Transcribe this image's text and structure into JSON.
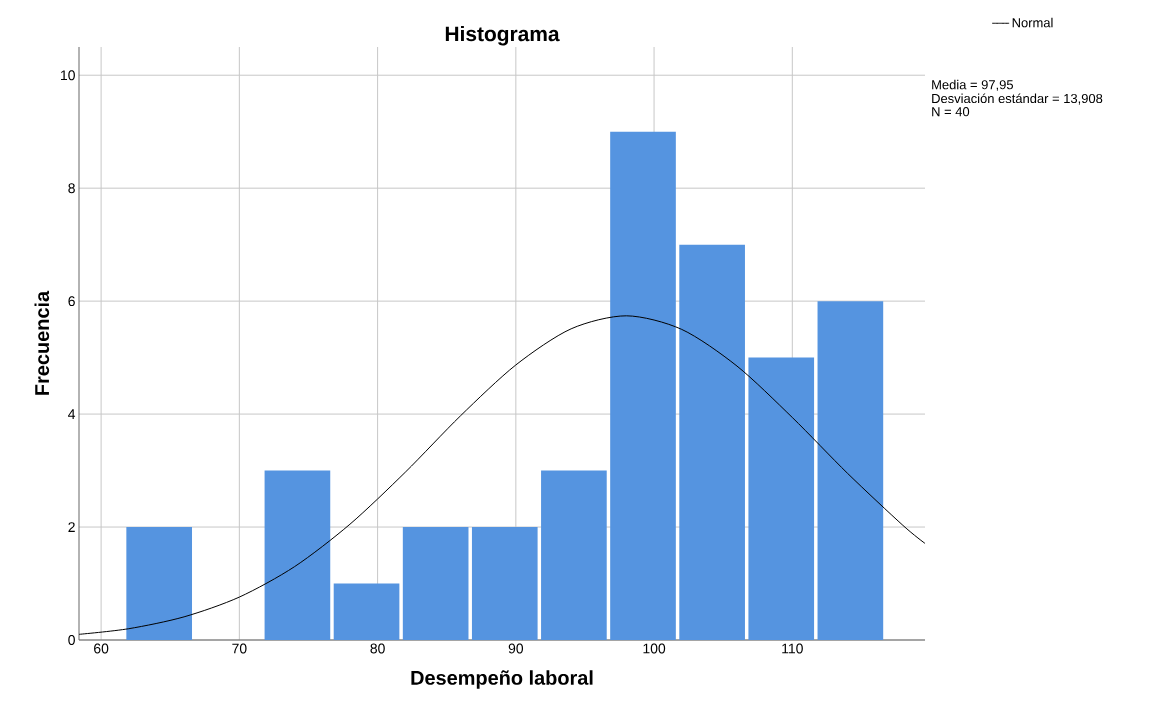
{
  "chart_data": {
    "type": "histogram",
    "title": "Histograma",
    "xlabel": "Desempeño laboral",
    "ylabel": "Frecuencia",
    "bins": [
      61.7,
      66.7,
      71.7,
      76.7,
      81.7,
      86.7,
      91.7,
      96.7,
      101.7,
      106.7,
      111.7,
      116.7
    ],
    "values": [
      2,
      0,
      3,
      1,
      2,
      2,
      3,
      9,
      7,
      5,
      6
    ],
    "color": "#5594e0",
    "series": [
      {
        "name": "Normal",
        "type": "line",
        "color": "#000000",
        "x": [
          58.4,
          62,
          66,
          70,
          74,
          78,
          82,
          86,
          90,
          94,
          98,
          102,
          106,
          110,
          114,
          118,
          119.6
        ],
        "values": [
          0.1,
          0.2,
          0.41,
          0.76,
          1.3,
          2.05,
          2.97,
          3.97,
          4.87,
          5.51,
          5.74,
          5.5,
          4.85,
          3.94,
          2.95,
          2.03,
          1.71
        ]
      }
    ],
    "xlim": [
      58.4,
      119.6
    ],
    "ylim": [
      0,
      10.5
    ],
    "xticks": [
      60,
      70,
      80,
      90,
      100,
      110
    ],
    "yticks": [
      0,
      2,
      4,
      6,
      8,
      10
    ],
    "grid": true,
    "legend": "top right",
    "annotations": [
      "Media = 97,95",
      "Desviación estándar = 13,908",
      "N = 40"
    ]
  }
}
